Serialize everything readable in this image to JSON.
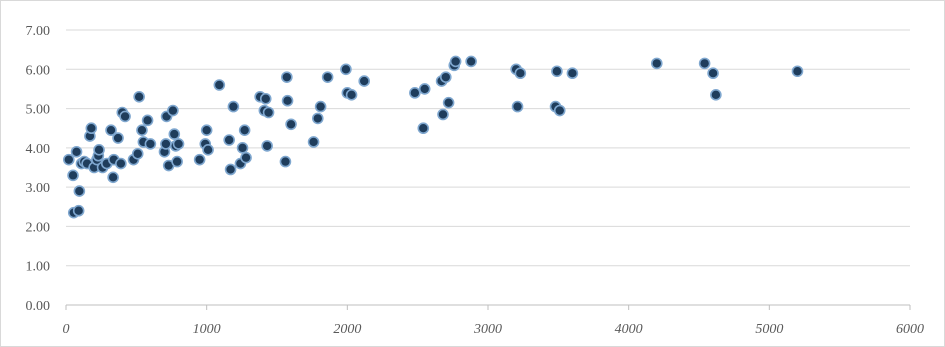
{
  "chart_data": {
    "type": "scatter",
    "title": "",
    "xlabel": "",
    "ylabel": "",
    "xlim": [
      0,
      6000
    ],
    "ylim": [
      0,
      7
    ],
    "x_ticks": [
      "0",
      "1000",
      "2000",
      "3000",
      "4000",
      "5000",
      "6000"
    ],
    "y_ticks": [
      "0.00",
      "1.00",
      "2.00",
      "3.00",
      "4.00",
      "5.00",
      "6.00",
      "7.00"
    ],
    "grid": "horizontal",
    "legend": "none",
    "colors": {
      "marker_fill": "#1f3d5c",
      "marker_edge": "#7fa7cf",
      "grid": "#d9d9d9",
      "axis": "#bfbfbf"
    },
    "points": [
      [
        20,
        3.7
      ],
      [
        50,
        3.3
      ],
      [
        55,
        2.35
      ],
      [
        75,
        3.9
      ],
      [
        90,
        2.4
      ],
      [
        95,
        2.9
      ],
      [
        110,
        3.6
      ],
      [
        130,
        3.65
      ],
      [
        150,
        3.6
      ],
      [
        170,
        4.3
      ],
      [
        180,
        4.5
      ],
      [
        200,
        3.5
      ],
      [
        220,
        3.7
      ],
      [
        230,
        3.8
      ],
      [
        235,
        3.95
      ],
      [
        260,
        3.5
      ],
      [
        290,
        3.6
      ],
      [
        320,
        4.45
      ],
      [
        335,
        3.25
      ],
      [
        340,
        3.7
      ],
      [
        370,
        4.25
      ],
      [
        390,
        3.6
      ],
      [
        400,
        4.9
      ],
      [
        420,
        4.8
      ],
      [
        480,
        3.7
      ],
      [
        510,
        3.85
      ],
      [
        520,
        5.3
      ],
      [
        540,
        4.45
      ],
      [
        550,
        4.15
      ],
      [
        580,
        4.7
      ],
      [
        600,
        4.1
      ],
      [
        700,
        3.9
      ],
      [
        710,
        4.1
      ],
      [
        715,
        4.8
      ],
      [
        730,
        3.55
      ],
      [
        760,
        4.95
      ],
      [
        770,
        4.35
      ],
      [
        780,
        4.05
      ],
      [
        790,
        3.65
      ],
      [
        800,
        4.1
      ],
      [
        950,
        3.7
      ],
      [
        990,
        4.1
      ],
      [
        1000,
        4.45
      ],
      [
        1010,
        3.95
      ],
      [
        1090,
        5.6
      ],
      [
        1160,
        4.2
      ],
      [
        1170,
        3.45
      ],
      [
        1190,
        5.05
      ],
      [
        1240,
        3.6
      ],
      [
        1255,
        4.0
      ],
      [
        1270,
        4.45
      ],
      [
        1280,
        3.75
      ],
      [
        1380,
        5.3
      ],
      [
        1410,
        4.95
      ],
      [
        1420,
        5.25
      ],
      [
        1430,
        4.05
      ],
      [
        1440,
        4.9
      ],
      [
        1560,
        3.65
      ],
      [
        1570,
        5.8
      ],
      [
        1575,
        5.2
      ],
      [
        1600,
        4.6
      ],
      [
        1760,
        4.15
      ],
      [
        1790,
        4.75
      ],
      [
        1810,
        5.05
      ],
      [
        1860,
        5.8
      ],
      [
        1990,
        6.0
      ],
      [
        2000,
        5.4
      ],
      [
        2030,
        5.35
      ],
      [
        2120,
        5.7
      ],
      [
        2480,
        5.4
      ],
      [
        2540,
        4.5
      ],
      [
        2550,
        5.5
      ],
      [
        2670,
        5.7
      ],
      [
        2680,
        4.85
      ],
      [
        2700,
        5.8
      ],
      [
        2720,
        5.15
      ],
      [
        2760,
        6.1
      ],
      [
        2770,
        6.2
      ],
      [
        2880,
        6.2
      ],
      [
        3200,
        6.0
      ],
      [
        3210,
        5.05
      ],
      [
        3230,
        5.9
      ],
      [
        3480,
        5.05
      ],
      [
        3490,
        5.95
      ],
      [
        3510,
        4.95
      ],
      [
        3600,
        5.9
      ],
      [
        4200,
        6.15
      ],
      [
        4540,
        6.15
      ],
      [
        4600,
        5.9
      ],
      [
        4620,
        5.35
      ],
      [
        5200,
        5.95
      ]
    ]
  }
}
